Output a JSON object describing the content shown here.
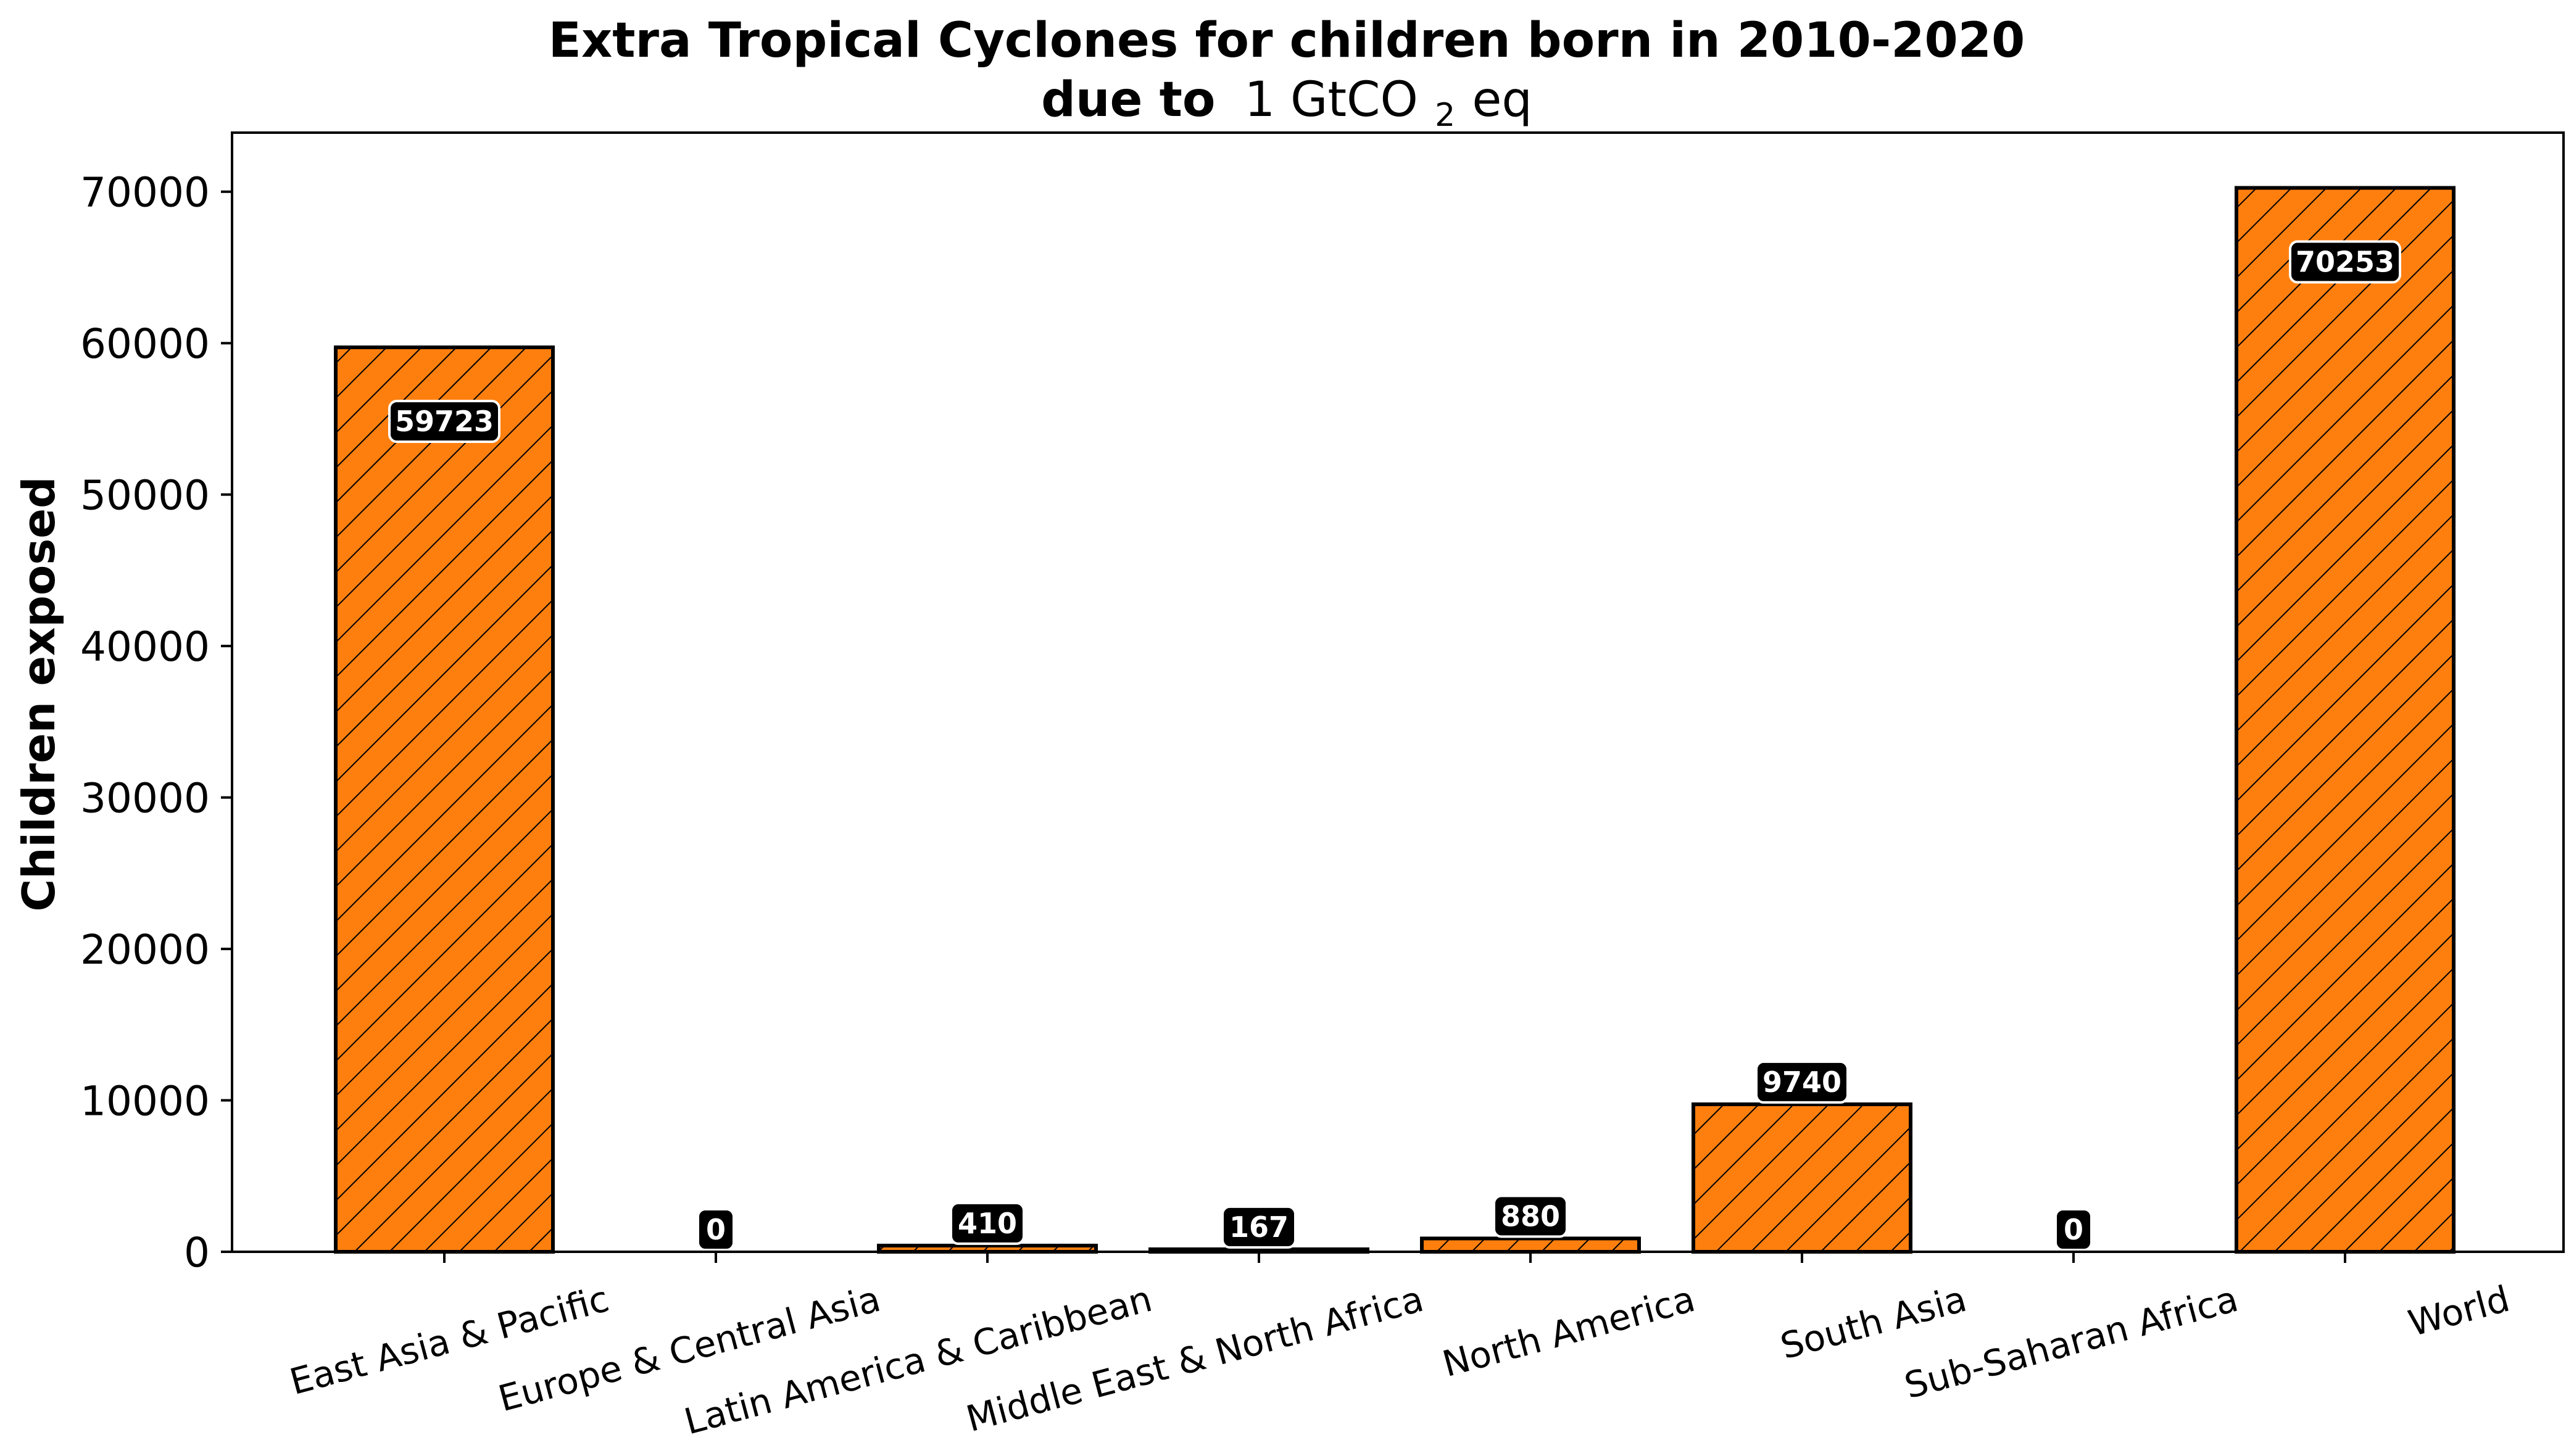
{
  "chart_data": {
    "type": "bar",
    "title": "Extra Tropical Cyclones for children born in 2010-2020",
    "subtitle_prefix": "due to",
    "subtitle_unit_pre": "1 GtCO",
    "subtitle_unit_sub": "2",
    "subtitle_unit_post": "eq",
    "xlabel": "",
    "ylabel": "Children exposed",
    "categories": [
      "East Asia & Pacific",
      "Europe & Central Asia",
      "Latin America & Caribbean",
      "Middle East & North Africa",
      "North America",
      "South Asia",
      "Sub-Saharan Africa",
      "World"
    ],
    "values": [
      59723,
      0,
      410,
      167,
      880,
      9740,
      0,
      70253
    ],
    "ylim": [
      0,
      73900
    ],
    "yticks": [
      0,
      10000,
      20000,
      30000,
      40000,
      50000,
      60000,
      70000
    ],
    "grid": false,
    "bar_color": "#ff7f0e",
    "bar_edge_color": "#000000",
    "hatch": "diagonal",
    "label_box_color": "#000000",
    "label_text_color": "#ffffff"
  }
}
